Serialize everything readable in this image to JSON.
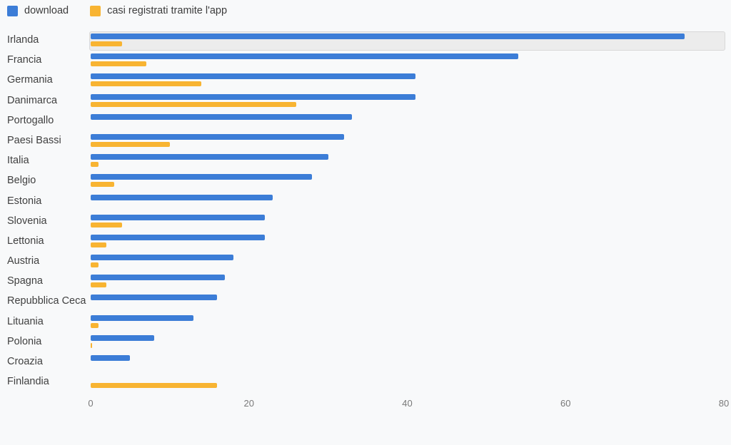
{
  "page": {
    "background": "#f8f9fa"
  },
  "legend": {
    "items": [
      {
        "label": "download",
        "color": "#3c7dd7"
      },
      {
        "label": "casi registrati tramite l'app",
        "color": "#f8b432"
      }
    ]
  },
  "chart_data": {
    "type": "bar",
    "orientation": "horizontal",
    "title": "",
    "xlabel": "",
    "ylabel": "",
    "xlim": [
      0,
      80
    ],
    "x_ticks": [
      0,
      20,
      40,
      60,
      80
    ],
    "grid": false,
    "legend_position": "top-left",
    "highlighted_category": "Irlanda",
    "categories": [
      "Irlanda",
      "Francia",
      "Germania",
      "Danimarca",
      "Portogallo",
      "Paesi Bassi",
      "Italia",
      "Belgio",
      "Estonia",
      "Slovenia",
      "Lettonia",
      "Austria",
      "Spagna",
      "Repubblica Ceca",
      "Lituania",
      "Polonia",
      "Croazia",
      "Finlandia"
    ],
    "series": [
      {
        "name": "download",
        "color": "#3c7dd7",
        "values": [
          75,
          54,
          41,
          41,
          33,
          32,
          30,
          28,
          23,
          22,
          22,
          18,
          17,
          16,
          13,
          8,
          5,
          null
        ]
      },
      {
        "name": "casi registrati tramite l'app",
        "color": "#f8b432",
        "values": [
          4,
          7,
          14,
          26,
          null,
          10,
          1,
          3,
          null,
          4,
          2,
          1,
          2,
          null,
          1,
          0.2,
          null,
          16
        ]
      }
    ]
  },
  "colors": {
    "background": "#f8f9fa",
    "highlight_fill": "#ececec",
    "highlight_border": "#d8d8d8",
    "label_text": "#404040",
    "axis_text": "#797979"
  }
}
